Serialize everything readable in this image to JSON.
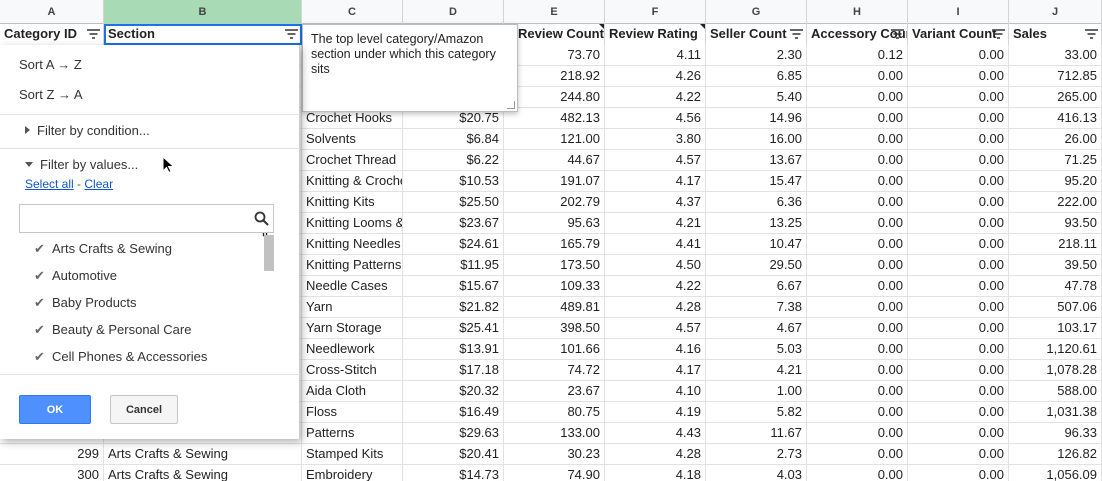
{
  "columns": [
    "A",
    "B",
    "C",
    "D",
    "E",
    "F",
    "G",
    "H",
    "I",
    "J"
  ],
  "headers": [
    "Category ID",
    "Section",
    "",
    "",
    "Review Count",
    "Review Rating",
    "Seller Count",
    "Accessory Count",
    "Variant Count",
    "Sales"
  ],
  "note": {
    "text": "The top level category/Amazon section under which this category sits"
  },
  "menu": {
    "sort_az": "Sort A → Z",
    "sort_za": "Sort Z → A",
    "filter_condition": "Filter by condition...",
    "filter_values": "Filter by values...",
    "select_all": "Select all",
    "dash": "-",
    "clear": "Clear",
    "search_value": "",
    "values": [
      "Arts Crafts & Sewing",
      "Automotive",
      "Baby Products",
      "Beauty & Personal Care",
      "Cell Phones & Accessories"
    ],
    "ok": "OK",
    "cancel": "Cancel"
  },
  "rows": [
    {
      "a": "",
      "b": "",
      "c": "",
      "d": "",
      "e": "73.70",
      "f": "4.11",
      "g": "2.30",
      "h": "0.12",
      "i": "0.00",
      "j": "33.00"
    },
    {
      "a": "",
      "b": "",
      "c": "",
      "d": "",
      "e": "218.92",
      "f": "4.26",
      "g": "6.85",
      "h": "0.00",
      "i": "0.00",
      "j": "712.85"
    },
    {
      "a": "",
      "b": "",
      "c": "",
      "d": "",
      "e": "244.80",
      "f": "4.22",
      "g": "5.40",
      "h": "0.00",
      "i": "0.00",
      "j": "265.00"
    },
    {
      "a": "",
      "b": "",
      "c": "Crochet Hooks",
      "d": "$20.75",
      "e": "482.13",
      "f": "4.56",
      "g": "14.96",
      "h": "0.00",
      "i": "0.00",
      "j": "416.13"
    },
    {
      "a": "",
      "b": "",
      "c": "Solvents",
      "d": "$6.84",
      "e": "121.00",
      "f": "3.80",
      "g": "16.00",
      "h": "0.00",
      "i": "0.00",
      "j": "26.00"
    },
    {
      "a": "",
      "b": "",
      "c": "Crochet Thread",
      "d": "$6.22",
      "e": "44.67",
      "f": "4.57",
      "g": "13.67",
      "h": "0.00",
      "i": "0.00",
      "j": "71.25"
    },
    {
      "a": "",
      "b": "",
      "c": "Knitting & Crochet",
      "d": "$10.53",
      "e": "191.07",
      "f": "4.17",
      "g": "15.47",
      "h": "0.00",
      "i": "0.00",
      "j": "95.20"
    },
    {
      "a": "",
      "b": "",
      "c": "Knitting Kits",
      "d": "$25.50",
      "e": "202.79",
      "f": "4.37",
      "g": "6.36",
      "h": "0.00",
      "i": "0.00",
      "j": "222.00"
    },
    {
      "a": "",
      "b": "",
      "c": "Knitting Looms &",
      "d": "$23.67",
      "e": "95.63",
      "f": "4.21",
      "g": "13.25",
      "h": "0.00",
      "i": "0.00",
      "j": "93.50"
    },
    {
      "a": "",
      "b": "",
      "c": "Knitting Needles",
      "d": "$24.61",
      "e": "165.79",
      "f": "4.41",
      "g": "10.47",
      "h": "0.00",
      "i": "0.00",
      "j": "218.11"
    },
    {
      "a": "",
      "b": "",
      "c": "Knitting Patterns",
      "d": "$11.95",
      "e": "173.50",
      "f": "4.50",
      "g": "29.50",
      "h": "0.00",
      "i": "0.00",
      "j": "39.50"
    },
    {
      "a": "",
      "b": "",
      "c": "Needle Cases",
      "d": "$15.67",
      "e": "109.33",
      "f": "4.22",
      "g": "6.67",
      "h": "0.00",
      "i": "0.00",
      "j": "47.78"
    },
    {
      "a": "",
      "b": "",
      "c": "Yarn",
      "d": "$21.82",
      "e": "489.81",
      "f": "4.28",
      "g": "7.38",
      "h": "0.00",
      "i": "0.00",
      "j": "507.06"
    },
    {
      "a": "",
      "b": "",
      "c": "Yarn Storage",
      "d": "$25.41",
      "e": "398.50",
      "f": "4.57",
      "g": "4.67",
      "h": "0.00",
      "i": "0.00",
      "j": "103.17"
    },
    {
      "a": "",
      "b": "",
      "c": "Needlework",
      "d": "$13.91",
      "e": "101.66",
      "f": "4.16",
      "g": "5.03",
      "h": "0.00",
      "i": "0.00",
      "j": "1,120.61"
    },
    {
      "a": "",
      "b": "",
      "c": "Cross-Stitch",
      "d": "$17.18",
      "e": "74.72",
      "f": "4.17",
      "g": "4.21",
      "h": "0.00",
      "i": "0.00",
      "j": "1,078.28"
    },
    {
      "a": "",
      "b": "",
      "c": "Aida Cloth",
      "d": "$20.32",
      "e": "23.67",
      "f": "4.10",
      "g": "1.00",
      "h": "0.00",
      "i": "0.00",
      "j": "588.00"
    },
    {
      "a": "",
      "b": "",
      "c": "Floss",
      "d": "$16.49",
      "e": "80.75",
      "f": "4.19",
      "g": "5.82",
      "h": "0.00",
      "i": "0.00",
      "j": "1,031.38"
    },
    {
      "a": "",
      "b": "",
      "c": "Patterns",
      "d": "$29.63",
      "e": "133.00",
      "f": "4.43",
      "g": "11.67",
      "h": "0.00",
      "i": "0.00",
      "j": "96.33"
    },
    {
      "a": "299",
      "b": "Arts Crafts & Sewing",
      "c": "Stamped Kits",
      "d": "$20.41",
      "e": "30.23",
      "f": "4.28",
      "g": "2.73",
      "h": "0.00",
      "i": "0.00",
      "j": "126.82"
    },
    {
      "a": "300",
      "b": "Arts Crafts & Sewing",
      "c": "Embroidery",
      "d": "$14.73",
      "e": "74.90",
      "f": "4.18",
      "g": "4.03",
      "h": "0.00",
      "i": "0.00",
      "j": "1,056.09"
    }
  ]
}
